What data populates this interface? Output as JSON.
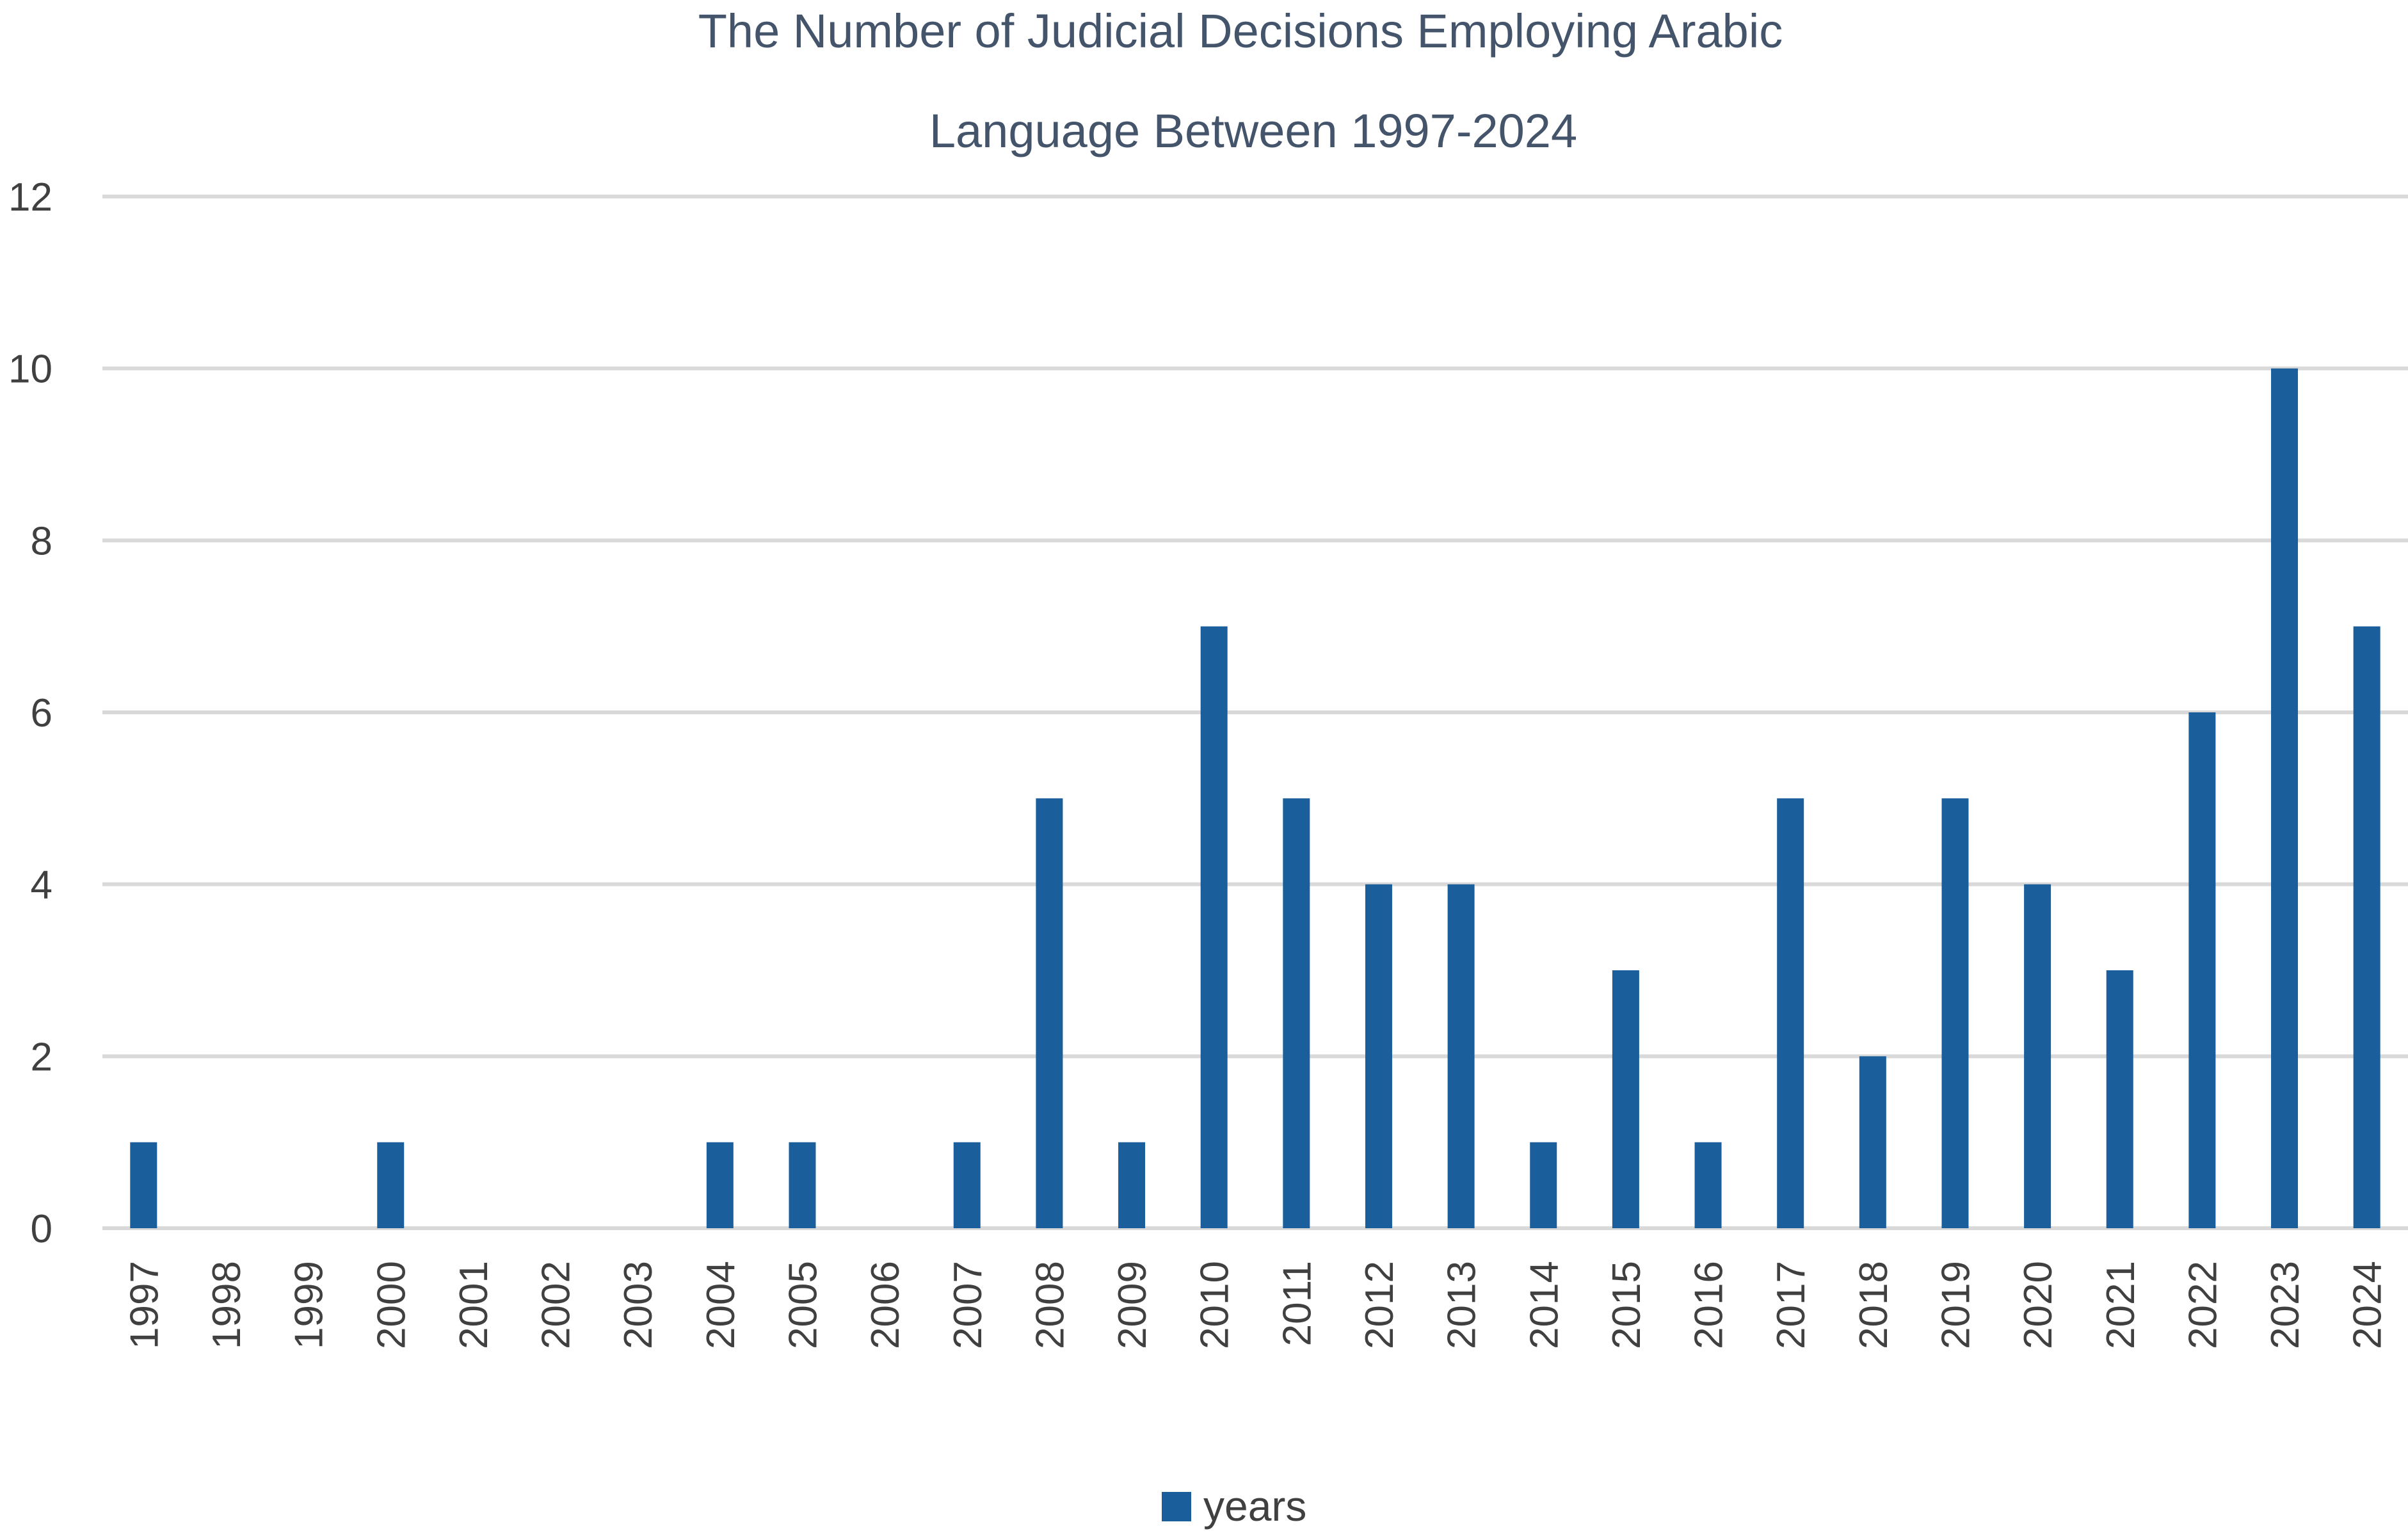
{
  "chart_data": {
    "type": "bar",
    "title": [
      "The Number of Judicial Decisions Employing Arabic",
      "Language Between 1997-2024"
    ],
    "xlabel": "",
    "ylabel": "",
    "categories": [
      "1997",
      "1998",
      "1999",
      "2000",
      "2001",
      "2002",
      "2003",
      "2004",
      "2005",
      "2006",
      "2007",
      "2008",
      "2009",
      "2010",
      "2011",
      "2012",
      "2013",
      "2014",
      "2015",
      "2016",
      "2017",
      "2018",
      "2019",
      "2020",
      "2021",
      "2022",
      "2023",
      "2024"
    ],
    "series": [
      {
        "name": "years",
        "color": "#1a5f9c",
        "values": [
          1,
          0,
          0,
          1,
          0,
          0,
          0,
          1,
          1,
          0,
          1,
          5,
          1,
          7,
          5,
          4,
          4,
          1,
          3,
          1,
          5,
          2,
          5,
          4,
          3,
          6,
          10,
          7
        ]
      }
    ],
    "ylim": [
      0,
      12
    ],
    "yticks": [
      "0",
      "2",
      "4",
      "6",
      "8",
      "10",
      "12"
    ],
    "grid": true,
    "legend_position": "bottom"
  }
}
